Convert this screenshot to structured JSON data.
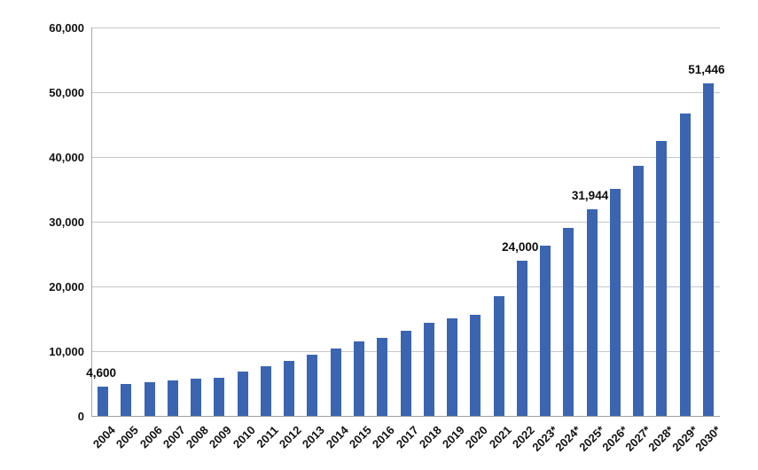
{
  "chart_data": {
    "type": "bar",
    "title": "",
    "xlabel": "",
    "ylabel": "",
    "legend": "none",
    "grid": true,
    "ylim": [
      0,
      60000
    ],
    "y_ticks": [
      0,
      10000,
      20000,
      30000,
      40000,
      50000,
      60000
    ],
    "y_tick_labels": [
      "0",
      "10,000",
      "20,000",
      "30,000",
      "40,000",
      "50,000",
      "60,000"
    ],
    "categories": [
      "2004",
      "2005",
      "2006",
      "2007",
      "2008",
      "2009",
      "2010",
      "2011",
      "2012",
      "2013",
      "2014",
      "2015",
      "2016",
      "2017",
      "2018",
      "2019",
      "2020",
      "2021",
      "2022",
      "2023*",
      "2024*",
      "2025*",
      "2026*",
      "2027*",
      "2028*",
      "2029*",
      "2030*"
    ],
    "values": [
      4600,
      5000,
      5200,
      5500,
      5800,
      6000,
      6900,
      7700,
      8600,
      9500,
      10500,
      11500,
      12100,
      13200,
      14400,
      15100,
      15600,
      18600,
      24000,
      26400,
      29040,
      31944,
      35138,
      38652,
      42517,
      46769,
      51446
    ],
    "value_labels": [
      {
        "category": "2004",
        "text": "4,600"
      },
      {
        "category": "2022",
        "text": "24,000"
      },
      {
        "category": "2025*",
        "text": "31,944"
      },
      {
        "category": "2030*",
        "text": "51,446"
      }
    ],
    "bar_color": "#3b65b0",
    "gridline_color": "#c7c7c7",
    "axis_color": "#9e9e9e",
    "text_color": "#111111"
  }
}
